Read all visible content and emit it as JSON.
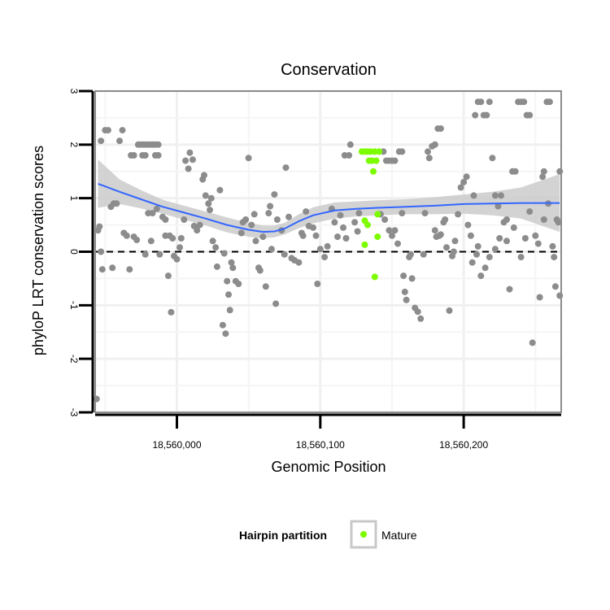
{
  "chart_data": {
    "type": "scatter",
    "title": "Conservation",
    "xlabel": "Genomic Position",
    "ylabel": "phyloP LRT conservation scores",
    "xlim": [
      18559943,
      18560268
    ],
    "ylim": [
      -3,
      3
    ],
    "x_ticks": [
      18560000,
      18560100,
      18560200
    ],
    "x_tick_labels": [
      "18,560,000",
      "18,560,100",
      "18,560,200"
    ],
    "y_ticks": [
      -3,
      -2,
      -1,
      0,
      1,
      2,
      3
    ],
    "y_tick_labels": [
      "-3",
      "-2",
      "-1",
      "0",
      "1",
      "2",
      "3"
    ],
    "reference_line": {
      "y": 0,
      "style": "dashed",
      "color": "#000000"
    },
    "grid": true,
    "legend": {
      "title": "Hairpin partition",
      "position": "bottom",
      "entries": [
        {
          "label": "Mature",
          "color": "#7cfc00"
        }
      ]
    },
    "colors": {
      "other": "#8c8c8c",
      "mature": "#7cfc00",
      "smooth": "#3366ff",
      "band": "#c8c8c8"
    },
    "series": [
      {
        "name": "Mature",
        "color": "#7cfc00",
        "points": [
          [
            18560129,
            1.87
          ],
          [
            18560131,
            1.87
          ],
          [
            18560133,
            1.87
          ],
          [
            18560135,
            1.87
          ],
          [
            18560138,
            1.87
          ],
          [
            18560141,
            1.87
          ],
          [
            18560134,
            1.7
          ],
          [
            18560136,
            1.7
          ],
          [
            18560139,
            1.7
          ],
          [
            18560137,
            1.5
          ],
          [
            18560131,
            0.58
          ],
          [
            18560140,
            0.7
          ],
          [
            18560133,
            0.5
          ],
          [
            18560131,
            0.13
          ],
          [
            18560140,
            0.28
          ],
          [
            18560138,
            -0.47
          ]
        ]
      },
      {
        "color": "#8c8c8c",
        "points": [
          [
            18559944,
            -2.75
          ],
          [
            18559945,
            0.4
          ],
          [
            18559946,
            0.47
          ],
          [
            18559947,
            0.0
          ],
          [
            18559948,
            -0.33
          ],
          [
            18559947,
            2.07
          ],
          [
            18559950,
            2.27
          ],
          [
            18559952,
            2.27
          ],
          [
            18559954,
            0.84
          ],
          [
            18559956,
            0.9
          ],
          [
            18559958,
            0.9
          ],
          [
            18559955,
            -0.3
          ],
          [
            18559960,
            2.07
          ],
          [
            18559962,
            2.27
          ],
          [
            18559963,
            0.35
          ],
          [
            18559965,
            0.3
          ],
          [
            18559967,
            -0.33
          ],
          [
            18559970,
            0.28
          ],
          [
            18559972,
            0.22
          ],
          [
            18559968,
            1.8
          ],
          [
            18559970,
            1.8
          ],
          [
            18559973,
            2.0
          ],
          [
            18559975,
            2.0
          ],
          [
            18559977,
            2.0
          ],
          [
            18559979,
            2.0
          ],
          [
            18559981,
            2.0
          ],
          [
            18559983,
            2.0
          ],
          [
            18559985,
            2.0
          ],
          [
            18559987,
            2.0
          ],
          [
            18559976,
            1.8
          ],
          [
            18559978,
            1.8
          ],
          [
            18559985,
            1.8
          ],
          [
            18559987,
            1.8
          ],
          [
            18559980,
            0.72
          ],
          [
            18559983,
            0.72
          ],
          [
            18559986,
            0.8
          ],
          [
            18559990,
            0.65
          ],
          [
            18559992,
            0.6
          ],
          [
            18559995,
            0.3
          ],
          [
            18559997,
            0.25
          ],
          [
            18559978,
            -0.05
          ],
          [
            18559982,
            0.2
          ],
          [
            18559988,
            -0.05
          ],
          [
            18559992,
            0.3
          ],
          [
            18559994,
            -0.45
          ],
          [
            18559996,
            -1.13
          ],
          [
            18559998,
            -0.08
          ],
          [
            18560000,
            -0.14
          ],
          [
            18560002,
            0.08
          ],
          [
            18560003,
            0.25
          ],
          [
            18560005,
            0.6
          ],
          [
            18560006,
            1.7
          ],
          [
            18560008,
            1.55
          ],
          [
            18560009,
            1.85
          ],
          [
            18560011,
            1.72
          ],
          [
            18560012,
            0.48
          ],
          [
            18560014,
            0.4
          ],
          [
            18560016,
            0.5
          ],
          [
            18560018,
            1.35
          ],
          [
            18560019,
            1.43
          ],
          [
            18560020,
            1.05
          ],
          [
            18560022,
            0.9
          ],
          [
            18560023,
            0.78
          ],
          [
            18560024,
            1.0
          ],
          [
            18560025,
            0.2
          ],
          [
            18560027,
            0.08
          ],
          [
            18560028,
            -0.28
          ],
          [
            18560030,
            1.15
          ],
          [
            18560032,
            -1.37
          ],
          [
            18560033,
            -0.03
          ],
          [
            18560034,
            -1.53
          ],
          [
            18560035,
            -0.55
          ],
          [
            18560036,
            -0.8
          ],
          [
            18560037,
            -1.09
          ],
          [
            18560038,
            -0.2
          ],
          [
            18560039,
            -0.3
          ],
          [
            18560041,
            -0.55
          ],
          [
            18560043,
            -0.6
          ],
          [
            18560045,
            0.35
          ],
          [
            18560046,
            0.55
          ],
          [
            18560048,
            0.6
          ],
          [
            18560050,
            1.75
          ],
          [
            18560052,
            0.5
          ],
          [
            18560054,
            0.7
          ],
          [
            18560055,
            0.2
          ],
          [
            18560057,
            -0.3
          ],
          [
            18560058,
            -0.35
          ],
          [
            18560060,
            0.28
          ],
          [
            18560062,
            -0.65
          ],
          [
            18560064,
            0.72
          ],
          [
            18560065,
            0.85
          ],
          [
            18560066,
            0.05
          ],
          [
            18560068,
            1.07
          ],
          [
            18560069,
            -0.97
          ],
          [
            18560070,
            0.6
          ],
          [
            18560073,
            0.4
          ],
          [
            18560075,
            -0.05
          ],
          [
            18560076,
            1.57
          ],
          [
            18560078,
            0.65
          ],
          [
            18560080,
            -0.12
          ],
          [
            18560082,
            -0.16
          ],
          [
            18560085,
            -0.2
          ],
          [
            18560087,
            0.35
          ],
          [
            18560088,
            0.3
          ],
          [
            18560090,
            0.75
          ],
          [
            18560092,
            0.48
          ],
          [
            18560095,
            0.45
          ],
          [
            18560097,
            0.3
          ],
          [
            18560098,
            -0.6
          ],
          [
            18560100,
            0.05
          ],
          [
            18560103,
            -0.1
          ],
          [
            18560105,
            0.1
          ],
          [
            18560108,
            0.8
          ],
          [
            18560110,
            0.55
          ],
          [
            18560112,
            0.28
          ],
          [
            18560114,
            0.68
          ],
          [
            18560116,
            0.45
          ],
          [
            18560118,
            0.25
          ],
          [
            18560117,
            1.8
          ],
          [
            18560120,
            1.8
          ],
          [
            18560121,
            2.0
          ],
          [
            18560124,
            0.55
          ],
          [
            18560126,
            0.38
          ],
          [
            18560127,
            0.72
          ],
          [
            18560142,
            0.7
          ],
          [
            18560144,
            1.87
          ],
          [
            18560146,
            1.7
          ],
          [
            18560148,
            1.7
          ],
          [
            18560150,
            1.7
          ],
          [
            18560152,
            1.7
          ],
          [
            18560155,
            1.87
          ],
          [
            18560157,
            1.87
          ],
          [
            18560145,
            0.6
          ],
          [
            18560148,
            0.4
          ],
          [
            18560150,
            0.3
          ],
          [
            18560152,
            0.4
          ],
          [
            18560154,
            0.15
          ],
          [
            18560157,
            0.72
          ],
          [
            18560158,
            -0.45
          ],
          [
            18560159,
            -0.75
          ],
          [
            18560160,
            -0.9
          ],
          [
            18560162,
            -0.1
          ],
          [
            18560163,
            -0.05
          ],
          [
            18560164,
            -0.5
          ],
          [
            18560166,
            -1.05
          ],
          [
            18560168,
            -1.12
          ],
          [
            18560170,
            -1.25
          ],
          [
            18560172,
            -0.05
          ],
          [
            18560173,
            0.72
          ],
          [
            18560175,
            1.87
          ],
          [
            18560176,
            1.75
          ],
          [
            18560178,
            1.97
          ],
          [
            18560180,
            2.0
          ],
          [
            18560182,
            2.3
          ],
          [
            18560184,
            2.3
          ],
          [
            18560180,
            0.4
          ],
          [
            18560181,
            0.28
          ],
          [
            18560183,
            0.3
          ],
          [
            18560184,
            0.32
          ],
          [
            18560186,
            0.55
          ],
          [
            18560187,
            0.6
          ],
          [
            18560188,
            0.08
          ],
          [
            18560190,
            -1.1
          ],
          [
            18560192,
            -0.08
          ],
          [
            18560193,
            0.0
          ],
          [
            18560194,
            0.2
          ],
          [
            18560196,
            0.7
          ],
          [
            18560198,
            1.2
          ],
          [
            18560200,
            1.3
          ],
          [
            18560202,
            1.4
          ],
          [
            18560203,
            0.5
          ],
          [
            18560205,
            0.3
          ],
          [
            18560206,
            -0.2
          ],
          [
            18560207,
            1.05
          ],
          [
            18560208,
            2.55
          ],
          [
            18560210,
            2.8
          ],
          [
            18560212,
            2.8
          ],
          [
            18560214,
            2.55
          ],
          [
            18560216,
            2.55
          ],
          [
            18560218,
            2.8
          ],
          [
            18560220,
            1.75
          ],
          [
            18560222,
            1.05
          ],
          [
            18560224,
            0.85
          ],
          [
            18560226,
            1.05
          ],
          [
            18560228,
            0.55
          ],
          [
            18560230,
            0.2
          ],
          [
            18560232,
            -0.7
          ],
          [
            18560234,
            1.5
          ],
          [
            18560236,
            1.5
          ],
          [
            18560238,
            2.8
          ],
          [
            18560240,
            2.8
          ],
          [
            18560242,
            2.8
          ],
          [
            18560244,
            2.55
          ],
          [
            18560246,
            2.55
          ],
          [
            18560248,
            -1.7
          ],
          [
            18560250,
            0.3
          ],
          [
            18560252,
            0.15
          ],
          [
            18560253,
            -0.85
          ],
          [
            18560255,
            1.4
          ],
          [
            18560256,
            1.5
          ],
          [
            18560258,
            2.8
          ],
          [
            18560260,
            2.8
          ],
          [
            18560262,
            0.1
          ],
          [
            18560263,
            -0.1
          ],
          [
            18560264,
            -0.65
          ],
          [
            18560265,
            0.6
          ],
          [
            18560266,
            0.55
          ],
          [
            18560267,
            1.5
          ],
          [
            18560267,
            -0.82
          ],
          [
            18560256,
            0.6
          ],
          [
            18560259,
            0.9
          ],
          [
            18560246,
            0.75
          ],
          [
            18560243,
            0.25
          ],
          [
            18560240,
            -0.1
          ],
          [
            18560235,
            0.45
          ],
          [
            18560230,
            0.6
          ],
          [
            18560225,
            0.25
          ],
          [
            18560222,
            0.05
          ],
          [
            18560218,
            -0.1
          ],
          [
            18560215,
            -0.3
          ],
          [
            18560212,
            -0.45
          ],
          [
            18560210,
            0.1
          ],
          [
            18560209,
            -0.05
          ]
        ]
      }
    ],
    "smooth": {
      "method": "loess",
      "color": "#3366ff",
      "points": [
        [
          18559945,
          1.27
        ],
        [
          18559960,
          1.12
        ],
        [
          18559975,
          0.98
        ],
        [
          18559990,
          0.84
        ],
        [
          18560005,
          0.73
        ],
        [
          18560020,
          0.62
        ],
        [
          18560035,
          0.5
        ],
        [
          18560050,
          0.41
        ],
        [
          18560060,
          0.37
        ],
        [
          18560068,
          0.38
        ],
        [
          18560075,
          0.43
        ],
        [
          18560085,
          0.57
        ],
        [
          18560095,
          0.68
        ],
        [
          18560110,
          0.77
        ],
        [
          18560125,
          0.8
        ],
        [
          18560140,
          0.82
        ],
        [
          18560160,
          0.84
        ],
        [
          18560180,
          0.86
        ],
        [
          18560200,
          0.89
        ],
        [
          18560220,
          0.9
        ],
        [
          18560240,
          0.91
        ],
        [
          18560267,
          0.91
        ]
      ],
      "band_upper": [
        1.72,
        1.35,
        1.15,
        0.97,
        0.86,
        0.75,
        0.64,
        0.54,
        0.49,
        0.49,
        0.54,
        0.7,
        0.83,
        0.92,
        0.94,
        0.96,
        0.98,
        1.02,
        1.07,
        1.12,
        1.2,
        1.45
      ],
      "band_lower": [
        0.82,
        0.89,
        0.81,
        0.71,
        0.6,
        0.49,
        0.36,
        0.28,
        0.25,
        0.27,
        0.32,
        0.44,
        0.53,
        0.62,
        0.66,
        0.68,
        0.7,
        0.7,
        0.71,
        0.68,
        0.62,
        0.37
      ]
    }
  }
}
